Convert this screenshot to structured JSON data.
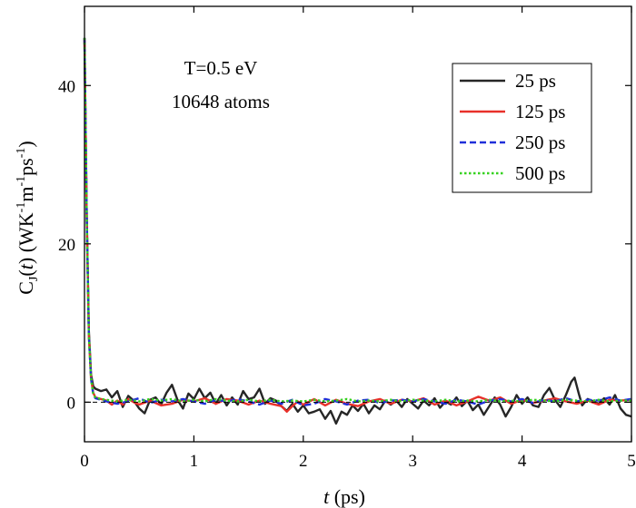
{
  "chart_data": {
    "type": "line",
    "xlabel": "t (ps)",
    "xlabel_parts": {
      "var": "t",
      "rest": " (ps)"
    },
    "ylabel": "C_J(t) (WK^-1 m^-1 ps^-1)",
    "ylabel_parts": {
      "c": "C",
      "sub": "J",
      "open": "(",
      "var": "t",
      "close": ") (WK",
      "sup1": "-1",
      "m": "m",
      "sup2": "-1",
      "ps": "ps",
      "sup3": "-1",
      "end": ")"
    },
    "xlim": [
      0,
      5
    ],
    "ylim": [
      -5,
      50
    ],
    "x_ticks": [
      0,
      1,
      2,
      3,
      4,
      5
    ],
    "y_ticks": [
      0,
      20,
      40
    ],
    "legend_position": "top-right",
    "annotations": [
      "T=0.5 eV",
      "10648 atoms"
    ],
    "series": [
      {
        "name": "25 ps",
        "color": "#262626",
        "style": "solid",
        "points": [
          [
            0,
            46
          ],
          [
            0.02,
            24
          ],
          [
            0.04,
            9
          ],
          [
            0.06,
            3.5
          ],
          [
            0.08,
            2
          ],
          [
            0.1,
            1.7
          ],
          [
            0.15,
            1.4
          ],
          [
            0.2,
            1.6
          ],
          [
            0.25,
            0.6
          ],
          [
            0.3,
            1.4
          ],
          [
            0.35,
            -0.6
          ],
          [
            0.4,
            0.8
          ],
          [
            0.45,
            0.2
          ],
          [
            0.5,
            -0.8
          ],
          [
            0.55,
            -1.4
          ],
          [
            0.6,
            0.3
          ],
          [
            0.65,
            0.6
          ],
          [
            0.7,
            -0.3
          ],
          [
            0.75,
            1.2
          ],
          [
            0.8,
            2.2
          ],
          [
            0.85,
            0.3
          ],
          [
            0.9,
            -0.8
          ],
          [
            0.95,
            1.1
          ],
          [
            1.0,
            0.4
          ],
          [
            1.05,
            1.7
          ],
          [
            1.1,
            0.5
          ],
          [
            1.15,
            1.2
          ],
          [
            1.2,
            -0.2
          ],
          [
            1.25,
            0.9
          ],
          [
            1.3,
            -0.4
          ],
          [
            1.35,
            0.6
          ],
          [
            1.4,
            -0.3
          ],
          [
            1.45,
            1.4
          ],
          [
            1.5,
            0.4
          ],
          [
            1.55,
            0.6
          ],
          [
            1.6,
            1.7
          ],
          [
            1.65,
            -0.2
          ],
          [
            1.7,
            0.5
          ],
          [
            1.75,
            0.2
          ],
          [
            1.8,
            -0.5
          ],
          [
            1.85,
            -1.1
          ],
          [
            1.9,
            -0.2
          ],
          [
            1.95,
            -1.2
          ],
          [
            2.0,
            -0.4
          ],
          [
            2.05,
            -1.4
          ],
          [
            2.1,
            -1.2
          ],
          [
            2.15,
            -0.9
          ],
          [
            2.2,
            -2.1
          ],
          [
            2.25,
            -1.1
          ],
          [
            2.3,
            -2.7
          ],
          [
            2.35,
            -1.2
          ],
          [
            2.4,
            -1.6
          ],
          [
            2.45,
            -0.4
          ],
          [
            2.5,
            -1.1
          ],
          [
            2.55,
            -0.2
          ],
          [
            2.6,
            -1.4
          ],
          [
            2.65,
            -0.4
          ],
          [
            2.7,
            -0.9
          ],
          [
            2.75,
            0.2
          ],
          [
            2.8,
            -0.3
          ],
          [
            2.85,
            0.2
          ],
          [
            2.9,
            -0.6
          ],
          [
            2.95,
            0.4
          ],
          [
            3.0,
            -0.2
          ],
          [
            3.05,
            -0.8
          ],
          [
            3.1,
            0.2
          ],
          [
            3.15,
            -0.4
          ],
          [
            3.2,
            0.5
          ],
          [
            3.25,
            -0.7
          ],
          [
            3.3,
            0.1
          ],
          [
            3.35,
            -0.3
          ],
          [
            3.4,
            0.6
          ],
          [
            3.45,
            -0.5
          ],
          [
            3.5,
            0.2
          ],
          [
            3.55,
            -1.0
          ],
          [
            3.6,
            -0.3
          ],
          [
            3.65,
            -1.6
          ],
          [
            3.7,
            -0.5
          ],
          [
            3.75,
            0.6
          ],
          [
            3.8,
            -0.3
          ],
          [
            3.85,
            -1.8
          ],
          [
            3.9,
            -0.6
          ],
          [
            3.95,
            0.9
          ],
          [
            4.0,
            -0.2
          ],
          [
            4.05,
            0.6
          ],
          [
            4.1,
            -0.4
          ],
          [
            4.15,
            -0.6
          ],
          [
            4.2,
            0.9
          ],
          [
            4.25,
            1.8
          ],
          [
            4.3,
            0.3
          ],
          [
            4.35,
            -0.6
          ],
          [
            4.4,
            0.9
          ],
          [
            4.45,
            2.6
          ],
          [
            4.48,
            3.1
          ],
          [
            4.52,
            1.0
          ],
          [
            4.55,
            -0.4
          ],
          [
            4.6,
            0.4
          ],
          [
            4.65,
            0.1
          ],
          [
            4.7,
            -0.2
          ],
          [
            4.75,
            0.5
          ],
          [
            4.8,
            -0.3
          ],
          [
            4.85,
            0.9
          ],
          [
            4.9,
            -0.8
          ],
          [
            4.95,
            -1.6
          ],
          [
            5.0,
            -1.8
          ]
        ]
      },
      {
        "name": "125 ps",
        "color": "#e8302a",
        "style": "solid",
        "points": [
          [
            0,
            46
          ],
          [
            0.02,
            24
          ],
          [
            0.04,
            8.5
          ],
          [
            0.06,
            3
          ],
          [
            0.08,
            1.2
          ],
          [
            0.1,
            0.6
          ],
          [
            0.15,
            0.4
          ],
          [
            0.2,
            0.2
          ],
          [
            0.25,
            -0.3
          ],
          [
            0.3,
            0.2
          ],
          [
            0.35,
            -0.3
          ],
          [
            0.4,
            0.4
          ],
          [
            0.45,
            0
          ],
          [
            0.5,
            -0.3
          ],
          [
            0.6,
            0.2
          ],
          [
            0.7,
            -0.4
          ],
          [
            0.8,
            -0.2
          ],
          [
            0.9,
            0.3
          ],
          [
            1.0,
            0.1
          ],
          [
            1.1,
            0.5
          ],
          [
            1.2,
            -0.2
          ],
          [
            1.3,
            0.4
          ],
          [
            1.4,
            0.2
          ],
          [
            1.5,
            -0.3
          ],
          [
            1.6,
            0.2
          ],
          [
            1.7,
            -0.2
          ],
          [
            1.8,
            -0.5
          ],
          [
            1.85,
            -1.2
          ],
          [
            1.9,
            -0.5
          ],
          [
            1.95,
            0.1
          ],
          [
            2.0,
            -0.3
          ],
          [
            2.1,
            0.4
          ],
          [
            2.2,
            -0.4
          ],
          [
            2.3,
            0.3
          ],
          [
            2.4,
            -0.2
          ],
          [
            2.5,
            -0.5
          ],
          [
            2.6,
            0.1
          ],
          [
            2.7,
            0.4
          ],
          [
            2.8,
            -0.2
          ],
          [
            2.9,
            0.3
          ],
          [
            3.0,
            0.1
          ],
          [
            3.1,
            0.5
          ],
          [
            3.2,
            -0.3
          ],
          [
            3.3,
            0.2
          ],
          [
            3.4,
            -0.4
          ],
          [
            3.5,
            0.1
          ],
          [
            3.6,
            0.7
          ],
          [
            3.7,
            0.2
          ],
          [
            3.8,
            0.6
          ],
          [
            3.9,
            -0.2
          ],
          [
            4.0,
            0.3
          ],
          [
            4.1,
            -0.1
          ],
          [
            4.2,
            0.2
          ],
          [
            4.3,
            0.5
          ],
          [
            4.4,
            0.1
          ],
          [
            4.5,
            -0.2
          ],
          [
            4.6,
            0.2
          ],
          [
            4.7,
            -0.3
          ],
          [
            4.8,
            0.3
          ],
          [
            4.9,
            0.2
          ],
          [
            5.0,
            0.3
          ]
        ]
      },
      {
        "name": "250 ps",
        "color": "#1f2fd9",
        "style": "dashed",
        "points": [
          [
            0,
            46
          ],
          [
            0.02,
            24
          ],
          [
            0.04,
            8.5
          ],
          [
            0.06,
            3
          ],
          [
            0.08,
            1.0
          ],
          [
            0.1,
            0.5
          ],
          [
            0.15,
            0.3
          ],
          [
            0.2,
            0.1
          ],
          [
            0.3,
            -0.2
          ],
          [
            0.4,
            0.1
          ],
          [
            0.5,
            0.5
          ],
          [
            0.6,
            -0.1
          ],
          [
            0.7,
            0.3
          ],
          [
            0.8,
            0.1
          ],
          [
            0.9,
            0.4
          ],
          [
            1.0,
            0.1
          ],
          [
            1.1,
            -0.2
          ],
          [
            1.2,
            0.3
          ],
          [
            1.3,
            0.1
          ],
          [
            1.4,
            0.4
          ],
          [
            1.5,
            0.1
          ],
          [
            1.6,
            -0.3
          ],
          [
            1.7,
            0.2
          ],
          [
            1.8,
            -0.2
          ],
          [
            1.9,
            0.3
          ],
          [
            2.0,
            -0.4
          ],
          [
            2.1,
            -0.2
          ],
          [
            2.2,
            0.4
          ],
          [
            2.3,
            0.1
          ],
          [
            2.4,
            -0.3
          ],
          [
            2.5,
            0.2
          ],
          [
            2.6,
            0.3
          ],
          [
            2.7,
            -0.1
          ],
          [
            2.8,
            0.2
          ],
          [
            2.9,
            0.3
          ],
          [
            3.0,
            0.1
          ],
          [
            3.1,
            0.4
          ],
          [
            3.2,
            0.1
          ],
          [
            3.3,
            -0.2
          ],
          [
            3.4,
            0.3
          ],
          [
            3.5,
            0.1
          ],
          [
            3.6,
            -0.3
          ],
          [
            3.7,
            0.2
          ],
          [
            3.8,
            0.4
          ],
          [
            3.9,
            0.1
          ],
          [
            4.0,
            0.4
          ],
          [
            4.1,
            -0.1
          ],
          [
            4.2,
            0.3
          ],
          [
            4.3,
            0.1
          ],
          [
            4.4,
            0.5
          ],
          [
            4.5,
            0.1
          ],
          [
            4.6,
            0.3
          ],
          [
            4.7,
            0.2
          ],
          [
            4.8,
            0.6
          ],
          [
            4.9,
            0.2
          ],
          [
            5.0,
            0.4
          ]
        ]
      },
      {
        "name": "500 ps",
        "color": "#35d11f",
        "style": "dotted",
        "points": [
          [
            0,
            46
          ],
          [
            0.02,
            24
          ],
          [
            0.04,
            8.5
          ],
          [
            0.06,
            3
          ],
          [
            0.08,
            1.1
          ],
          [
            0.1,
            0.6
          ],
          [
            0.15,
            0.4
          ],
          [
            0.2,
            0.3
          ],
          [
            0.3,
            0.1
          ],
          [
            0.4,
            0.3
          ],
          [
            0.5,
            0.1
          ],
          [
            0.6,
            0.4
          ],
          [
            0.7,
            0.2
          ],
          [
            0.8,
            0.4
          ],
          [
            0.9,
            0.1
          ],
          [
            1.0,
            0.3
          ],
          [
            1.1,
            0.1
          ],
          [
            1.2,
            0.4
          ],
          [
            1.3,
            0.2
          ],
          [
            1.4,
            0.1
          ],
          [
            1.5,
            0.3
          ],
          [
            1.6,
            0.1
          ],
          [
            1.7,
            0.3
          ],
          [
            1.8,
            0.1
          ],
          [
            1.9,
            0.2
          ],
          [
            2.0,
            0.1
          ],
          [
            2.1,
            0.3
          ],
          [
            2.2,
            0.1
          ],
          [
            2.3,
            0.2
          ],
          [
            2.4,
            0.4
          ],
          [
            2.5,
            0.1
          ],
          [
            2.6,
            0.2
          ],
          [
            2.7,
            0.1
          ],
          [
            2.8,
            0.3
          ],
          [
            2.9,
            0.1
          ],
          [
            3.0,
            0.3
          ],
          [
            3.1,
            0.2
          ],
          [
            3.2,
            0.1
          ],
          [
            3.3,
            0.3
          ],
          [
            3.4,
            0.1
          ],
          [
            3.5,
            0.2
          ],
          [
            3.6,
            0.1
          ],
          [
            3.7,
            0.3
          ],
          [
            3.8,
            0.1
          ],
          [
            3.9,
            0.2
          ],
          [
            4.0,
            0.1
          ],
          [
            4.1,
            0.3
          ],
          [
            4.2,
            0.2
          ],
          [
            4.3,
            0.1
          ],
          [
            4.4,
            0.3
          ],
          [
            4.5,
            0.2
          ],
          [
            4.6,
            0.1
          ],
          [
            4.7,
            0.3
          ],
          [
            4.8,
            0.1
          ],
          [
            4.9,
            0.2
          ],
          [
            5.0,
            0.2
          ]
        ]
      }
    ]
  }
}
